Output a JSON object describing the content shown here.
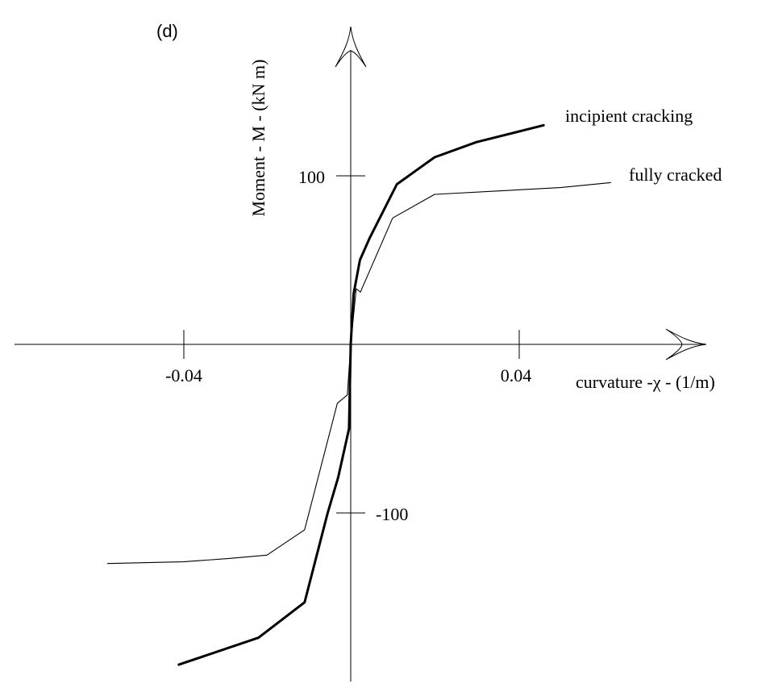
{
  "panel_label": "(d)",
  "chart_data": {
    "type": "line",
    "title": "",
    "xlabel": "curvature -χ - (1/m)",
    "ylabel": "Moment  - M - (kN m)",
    "x_ticks": [
      {
        "value": -0.04,
        "label": "-0.04"
      },
      {
        "value": 0.04,
        "label": "0.04"
      }
    ],
    "y_ticks": [
      {
        "value": 100,
        "label": "100"
      },
      {
        "value": -100,
        "label": "-100"
      }
    ],
    "xlim": [
      -0.08,
      0.085
    ],
    "ylim": [
      -200,
      190
    ],
    "grid": false,
    "legend": "labels at curve ends",
    "colors": {
      "line": "#000000",
      "axis": "#000000",
      "background": "#ffffff"
    },
    "series": [
      {
        "name": "incipient cracking",
        "weight": "bold",
        "points": [
          [
            -0.041,
            -190
          ],
          [
            -0.022,
            -174
          ],
          [
            -0.011,
            -153
          ],
          [
            -0.0055,
            -100
          ],
          [
            -0.003,
            -79
          ],
          [
            -0.0004,
            -50
          ],
          [
            0,
            0
          ],
          [
            0.0007,
            30
          ],
          [
            0.0022,
            50
          ],
          [
            0.0045,
            63
          ],
          [
            0.011,
            95
          ],
          [
            0.02,
            111
          ],
          [
            0.03,
            120
          ],
          [
            0.046,
            130
          ]
        ]
      },
      {
        "name": "fully cracked",
        "weight": "thin",
        "points": [
          [
            -0.058,
            -130
          ],
          [
            -0.04,
            -129
          ],
          [
            -0.029,
            -127
          ],
          [
            -0.02,
            -125
          ],
          [
            -0.011,
            -110
          ],
          [
            -0.0032,
            -35
          ],
          [
            -0.0008,
            -30
          ],
          [
            0,
            0
          ],
          [
            0.0013,
            33
          ],
          [
            0.0023,
            31
          ],
          [
            0.01,
            75
          ],
          [
            0.02,
            89
          ],
          [
            0.035,
            91
          ],
          [
            0.05,
            93
          ],
          [
            0.062,
            96
          ]
        ]
      }
    ]
  }
}
